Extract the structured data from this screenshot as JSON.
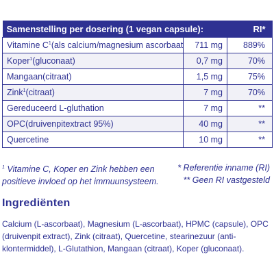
{
  "table": {
    "header_label": "Samenstelling per dosering (1 vegan capsule):",
    "header_ri": "RI*",
    "rows": [
      {
        "name": "Vitamine C",
        "sup": "1",
        "detail": "(als calcium/magnesium ascorbaat)",
        "amount": "711 mg",
        "ri": "889%"
      },
      {
        "name": "Koper",
        "sup": "1",
        "detail": "(gluconaat)",
        "amount": "0,7 mg",
        "ri": "70%"
      },
      {
        "name": "Mangaan",
        "sup": "",
        "detail": "(citraat)",
        "amount": "1,5 mg",
        "ri": "75%"
      },
      {
        "name": "Zink",
        "sup": "1",
        "detail": "(citraat)",
        "amount": "7 mg",
        "ri": "70%"
      },
      {
        "name": "Gereduceerd L-gluthation",
        "sup": "",
        "detail": "",
        "amount": "7 mg",
        "ri": "**"
      },
      {
        "name": "OPC",
        "sup": "",
        "detail": "(druivenpitextract 95%)",
        "amount": "40 mg",
        "ri": "**"
      },
      {
        "name": "Quercetine",
        "sup": "",
        "detail": "",
        "amount": "10 mg",
        "ri": "**"
      }
    ]
  },
  "footnotes": {
    "left_sup": "1",
    "left": "Vitamine C, Koper en Zink hebben een positieve invloed op het immuunsysteem.",
    "right_line1": "* Referentie inname (RI)",
    "right_line2": "** Geen RI vastgesteld"
  },
  "ingredients": {
    "title": "Ingrediënten",
    "text": "Calcium (L-ascorbaat), Magnesium (L-ascorbaat), HPMC (capsule), OPC (druivenpit extract), Zink (citraat), Quercetine, stearinezuur (anti-klontermiddel), L-Glutathion, Mangaan (citraat), Koper (gluconaat)."
  },
  "colors": {
    "brand": "#2e3192",
    "row_shade": "#f1f1f7"
  }
}
